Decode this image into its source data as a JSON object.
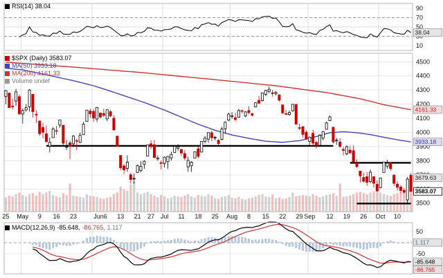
{
  "legends": {
    "rsi": {
      "text": "RSI(14) 38.04",
      "swatch": "#000000",
      "color": "#000000"
    },
    "symbol": {
      "text": "$SPX (Daily) 3583.07",
      "swatch": "#cc0000",
      "color": "#000000"
    },
    "ma50": {
      "text": "MA(50) 3933.18",
      "swatch": "#4444bb",
      "color": "#4444bb"
    },
    "ma200": {
      "text": "MA(200) 4161.33",
      "swatch": "#cc3333",
      "color": "#cc3333"
    },
    "volume": {
      "text": "Volume undef",
      "swatch": "#999999",
      "color": "#777777"
    },
    "macd": {
      "prefix": "MACD(12,26,9)",
      "swatch": "#000000",
      "values": [
        {
          "text": "-85.648,",
          "color": "#000000"
        },
        {
          "text": "-86.765,",
          "color": "#cc3333"
        },
        {
          "text": "1.117",
          "color": "#667788"
        }
      ]
    }
  },
  "chart_data": {
    "type": "candlestick",
    "title": "$SPX (Daily)",
    "colors": {
      "up": "#000000",
      "down": "#cc0000",
      "ma50": "#4444bb",
      "ma200": "#cc3333",
      "macd": "#000000",
      "signal": "#cc3333",
      "hist": "#b3c6dd",
      "vol_up": "rgba(150,150,150,0.45)",
      "vol_down": "rgba(225,110,110,0.45)",
      "grid": "#e8e8e8",
      "border": "#b5b5b5",
      "trendline": "#000000"
    },
    "panels": {
      "rsi": {
        "range": [
          0,
          100
        ],
        "ticks": [
          90,
          70,
          50,
          30,
          10
        ],
        "dashed": [
          70,
          30
        ],
        "dotted": [
          50
        ],
        "last_label": {
          "text": "38.04",
          "value": 38.04,
          "color": "#222222",
          "bg": "#e4e4e4"
        }
      },
      "price": {
        "range": [
          3440,
          4560
        ],
        "ticks": [
          4500,
          4400,
          4300,
          4200,
          4100,
          4000,
          3900,
          3800,
          3700,
          3600,
          3500
        ],
        "labels": [
          {
            "text": "4161.33",
            "value": 4161.33,
            "color": "#cc2222",
            "bg": "#f3dcdc"
          },
          {
            "text": "3933.18",
            "value": 3933.18,
            "color": "#3333bb",
            "bg": "#dcdcf0"
          },
          {
            "text": "3679.63",
            "value": 3679.63,
            "color": "#222222",
            "bg": "#e4e4e4"
          },
          {
            "text": "3583.07",
            "value": 3583.07,
            "color": "#000000",
            "bg": "#ffffff",
            "bold": true
          }
        ],
        "trendlines": [
          {
            "start": 12,
            "end": 97,
            "value": 3905
          },
          {
            "start": 102,
            "end": 120,
            "value": 3785
          },
          {
            "start": 104,
            "end": 120,
            "value": 3497
          }
        ]
      },
      "macd": {
        "range": [
          -140,
          90
        ],
        "grid": [
          50,
          0,
          -50
        ],
        "ticks": [
          50,
          -50
        ],
        "labels": [
          {
            "text": "1.117",
            "value": 1.117,
            "color": "#556677",
            "bg": "#e4e4e4"
          },
          {
            "text": "-85.648",
            "value": -85.648,
            "color": "#000000",
            "bg": "#e4e4e4"
          },
          {
            "text": "-86.765",
            "value": -86.765,
            "color": "#cc2222",
            "bg": "#f3dcdc"
          }
        ]
      }
    },
    "x_axis": {
      "labels": [
        {
          "t": "25",
          "i": 0
        },
        {
          "t": "May",
          "i": 5
        },
        {
          "t": "9",
          "i": 10
        },
        {
          "t": "16",
          "i": 15
        },
        {
          "t": "23",
          "i": 20
        },
        {
          "t": "Jun6",
          "i": 28
        },
        {
          "t": "13",
          "i": 34
        },
        {
          "t": "21",
          "i": 39
        },
        {
          "t": "27",
          "i": 43
        },
        {
          "t": "Jul",
          "i": 47
        },
        {
          "t": "11",
          "i": 52
        },
        {
          "t": "18",
          "i": 57
        },
        {
          "t": "25",
          "i": 62
        },
        {
          "t": "Aug",
          "i": 67
        },
        {
          "t": "8",
          "i": 72
        },
        {
          "t": "15",
          "i": 77
        },
        {
          "t": "22",
          "i": 82
        },
        {
          "t": "29",
          "i": 87
        },
        {
          "t": "Sep",
          "i": 90
        },
        {
          "t": "12",
          "i": 96
        },
        {
          "t": "19",
          "i": 101
        },
        {
          "t": "26",
          "i": 106
        },
        {
          "t": "Oct",
          "i": 111
        },
        {
          "t": "10",
          "i": 116
        }
      ],
      "months": [
        5,
        26,
        47,
        67,
        90,
        111
      ]
    },
    "series": {
      "ohlc": [
        [
          4255,
          4299,
          4200,
          4296
        ],
        [
          4278,
          4278,
          4175,
          4175
        ],
        [
          4186,
          4240,
          4162,
          4184
        ],
        [
          4222,
          4308,
          4188,
          4287
        ],
        [
          4253,
          4269,
          4124,
          4132
        ],
        [
          4130,
          4169,
          4062,
          4155
        ],
        [
          4159,
          4200,
          4147,
          4175
        ],
        [
          4181,
          4307,
          4148,
          4300
        ],
        [
          4270,
          4270,
          4106,
          4147
        ],
        [
          4128,
          4157,
          4067,
          4123
        ],
        [
          4081,
          4081,
          3975,
          3991
        ],
        [
          4035,
          4068,
          3958,
          4001
        ],
        [
          3990,
          4049,
          3928,
          3935
        ],
        [
          3903,
          3964,
          3858,
          3930
        ],
        [
          3963,
          4038,
          3963,
          4024
        ],
        [
          4013,
          4046,
          3983,
          4008
        ],
        [
          4052,
          4090,
          4033,
          4089
        ],
        [
          4051,
          4051,
          3911,
          3924
        ],
        [
          3899,
          3945,
          3876,
          3900
        ],
        [
          3927,
          3943,
          3810,
          3901
        ],
        [
          3919,
          3981,
          3909,
          3974
        ],
        [
          3942,
          3955,
          3875,
          3941
        ],
        [
          3929,
          3999,
          3925,
          3979
        ],
        [
          3984,
          4075,
          3984,
          4058
        ],
        [
          4077,
          4158,
          4077,
          4158
        ],
        [
          4151,
          4168,
          4104,
          4132
        ],
        [
          4149,
          4166,
          4074,
          4101
        ],
        [
          4095,
          4177,
          4074,
          4177
        ],
        [
          4137,
          4142,
          4098,
          4109
        ],
        [
          4134,
          4168,
          4109,
          4121
        ],
        [
          4096,
          4164,
          4080,
          4160
        ],
        [
          4147,
          4160,
          4107,
          4116
        ],
        [
          4101,
          4119,
          4017,
          4017
        ],
        [
          3974,
          3974,
          3900,
          3901
        ],
        [
          3838,
          3838,
          3734,
          3750
        ],
        [
          3763,
          3778,
          3706,
          3735
        ],
        [
          3746,
          3838,
          3722,
          3790
        ],
        [
          3701,
          3714,
          3639,
          3667
        ],
        [
          3672,
          3710,
          3637,
          3675
        ],
        [
          3716,
          3772,
          3716,
          3765
        ],
        [
          3730,
          3796,
          3718,
          3760
        ],
        [
          3774,
          3804,
          3743,
          3796
        ],
        [
          3832,
          3914,
          3832,
          3912
        ],
        [
          3920,
          3945,
          3882,
          3900
        ],
        [
          3913,
          3946,
          3820,
          3822
        ],
        [
          3812,
          3836,
          3799,
          3819
        ],
        [
          3786,
          3800,
          3739,
          3785
        ],
        [
          3781,
          3830,
          3752,
          3825
        ],
        [
          3793,
          3834,
          3742,
          3831
        ],
        [
          3819,
          3864,
          3801,
          3845
        ],
        [
          3857,
          3910,
          3857,
          3902
        ],
        [
          3888,
          3918,
          3869,
          3899
        ],
        [
          3880,
          3880,
          3834,
          3854
        ],
        [
          3851,
          3874,
          3803,
          3819
        ],
        [
          3756,
          3829,
          3722,
          3802
        ],
        [
          3764,
          3796,
          3721,
          3790
        ],
        [
          3818,
          3863,
          3817,
          3863
        ],
        [
          3884,
          3902,
          3819,
          3831
        ],
        [
          3861,
          3939,
          3860,
          3937
        ],
        [
          3936,
          3974,
          3922,
          3960
        ],
        [
          3952,
          4000,
          3927,
          3999
        ],
        [
          3998,
          4012,
          3938,
          3962
        ],
        [
          3965,
          3975,
          3943,
          3966
        ],
        [
          3944,
          3953,
          3910,
          3921
        ],
        [
          3950,
          4039,
          3944,
          4024
        ],
        [
          4026,
          4078,
          3992,
          4072
        ],
        [
          4087,
          4140,
          4079,
          4130
        ],
        [
          4112,
          4144,
          4096,
          4119
        ],
        [
          4104,
          4140,
          4079,
          4091
        ],
        [
          4107,
          4167,
          4107,
          4155
        ],
        [
          4154,
          4161,
          4135,
          4152
        ],
        [
          4116,
          4151,
          4107,
          4145
        ],
        [
          4155,
          4186,
          4128,
          4140
        ],
        [
          4133,
          4137,
          4112,
          4122
        ],
        [
          4181,
          4211,
          4177,
          4210
        ],
        [
          4227,
          4257,
          4201,
          4207
        ],
        [
          4225,
          4280,
          4219,
          4280
        ],
        [
          4269,
          4301,
          4256,
          4297
        ],
        [
          4290,
          4325,
          4277,
          4305
        ],
        [
          4280,
          4302,
          4253,
          4274
        ],
        [
          4273,
          4292,
          4261,
          4283
        ],
        [
          4266,
          4266,
          4218,
          4228
        ],
        [
          4195,
          4195,
          4129,
          4138
        ],
        [
          4133,
          4159,
          4124,
          4129
        ],
        [
          4126,
          4156,
          4119,
          4141
        ],
        [
          4153,
          4200,
          4147,
          4199
        ],
        [
          4198,
          4203,
          4057,
          4058
        ],
        [
          4034,
          4062,
          4017,
          4031
        ],
        [
          4041,
          4044,
          3965,
          3986
        ],
        [
          4001,
          4015,
          3954,
          3955
        ],
        [
          3936,
          3971,
          3903,
          3967
        ],
        [
          3994,
          4019,
          3906,
          3924
        ],
        [
          3930,
          3942,
          3886,
          3908
        ],
        [
          3909,
          3987,
          3906,
          3980
        ],
        [
          3959,
          4010,
          3944,
          4006
        ],
        [
          4022,
          4076,
          4022,
          4067
        ],
        [
          4083,
          4119,
          4083,
          4110
        ],
        [
          4037,
          4037,
          3921,
          3933
        ],
        [
          3940,
          3961,
          3913,
          3946
        ],
        [
          3932,
          3959,
          3893,
          3901
        ],
        [
          3880,
          3899,
          3837,
          3873
        ],
        [
          3849,
          3908,
          3838,
          3900
        ],
        [
          3875,
          3907,
          3846,
          3856
        ],
        [
          3871,
          3908,
          3789,
          3790
        ],
        [
          3783,
          3811,
          3749,
          3758
        ],
        [
          3727,
          3727,
          3647,
          3693
        ],
        [
          3682,
          3716,
          3644,
          3655
        ],
        [
          3687,
          3717,
          3623,
          3647
        ],
        [
          3652,
          3737,
          3641,
          3719
        ],
        [
          3687,
          3687,
          3610,
          3640
        ],
        [
          3633,
          3661,
          3585,
          3586
        ],
        [
          3610,
          3679,
          3604,
          3678
        ],
        [
          3717,
          3792,
          3717,
          3791
        ],
        [
          3761,
          3807,
          3744,
          3783
        ],
        [
          3787,
          3791,
          3731,
          3744
        ],
        [
          3697,
          3706,
          3621,
          3640
        ],
        [
          3635,
          3656,
          3588,
          3612
        ],
        [
          3614,
          3627,
          3569,
          3589
        ],
        [
          3591,
          3608,
          3568,
          3577
        ],
        [
          3523,
          3685,
          3491,
          3670
        ],
        [
          3697,
          3712,
          3579,
          3583
        ]
      ],
      "volume": [
        45,
        50,
        48,
        55,
        60,
        52,
        48,
        55,
        58,
        50,
        62,
        55,
        60,
        65,
        52,
        48,
        45,
        58,
        52,
        88,
        50,
        48,
        46,
        44,
        55,
        50,
        48,
        46,
        42,
        40,
        44,
        46,
        55,
        60,
        78,
        70,
        65,
        85,
        95,
        60,
        55,
        58,
        62,
        55,
        50,
        46,
        52,
        48,
        42,
        44,
        50,
        48,
        46,
        50,
        55,
        48,
        44,
        52,
        50,
        48,
        55,
        50,
        42,
        40,
        46,
        48,
        52,
        44,
        42,
        46,
        40,
        38,
        42,
        44,
        48,
        52,
        55,
        48,
        46,
        54,
        42,
        44,
        40,
        42,
        46,
        60,
        48,
        50,
        52,
        50,
        48,
        55,
        50,
        46,
        48,
        52,
        55,
        58,
        50,
        88,
        46,
        48,
        50,
        55,
        60,
        62,
        58,
        55,
        60,
        65,
        70,
        60,
        55,
        52,
        50,
        55,
        58,
        60,
        62,
        85,
        72
      ],
      "ma50_anchors": [
        [
          0,
          4455
        ],
        [
          5,
          4442
        ],
        [
          10,
          4418
        ],
        [
          15,
          4392
        ],
        [
          20,
          4366
        ],
        [
          26,
          4330
        ],
        [
          31,
          4292
        ],
        [
          36,
          4252
        ],
        [
          41,
          4212
        ],
        [
          47,
          4158
        ],
        [
          52,
          4108
        ],
        [
          57,
          4058
        ],
        [
          62,
          4015
        ],
        [
          67,
          3982
        ],
        [
          72,
          3958
        ],
        [
          77,
          3938
        ],
        [
          82,
          3930
        ],
        [
          87,
          3942
        ],
        [
          90,
          3958
        ],
        [
          96,
          3998
        ],
        [
          100,
          4005
        ],
        [
          104,
          3998
        ],
        [
          108,
          3985
        ],
        [
          111,
          3970
        ],
        [
          116,
          3948
        ],
        [
          120,
          3933
        ]
      ],
      "ma200_anchors": [
        [
          0,
          4497
        ],
        [
          20,
          4462
        ],
        [
          40,
          4424
        ],
        [
          60,
          4378
        ],
        [
          80,
          4330
        ],
        [
          95,
          4282
        ],
        [
          105,
          4238
        ],
        [
          112,
          4196
        ],
        [
          120,
          4161
        ]
      ]
    }
  }
}
